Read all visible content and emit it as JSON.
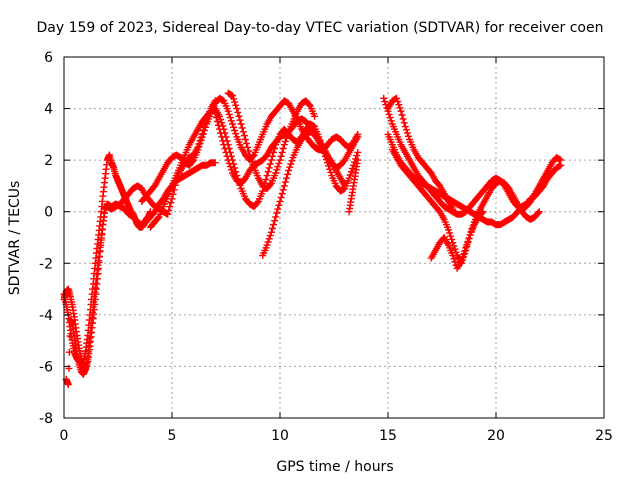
{
  "chart_data": {
    "type": "scatter",
    "title": "Day 159 of 2023, Sidereal Day-to-day VTEC variation (SDTVAR) for receiver coen",
    "xlabel": "GPS time / hours",
    "ylabel": "SDTVAR / TECUs",
    "xlim": [
      0,
      25
    ],
    "ylim": [
      -8,
      6
    ],
    "xticks": [
      0,
      5,
      10,
      15,
      20,
      25
    ],
    "yticks": [
      -8,
      -6,
      -4,
      -2,
      0,
      2,
      4,
      6
    ],
    "xtick_labels": [
      "0",
      "5",
      "10",
      "15",
      "20",
      "25"
    ],
    "ytick_labels": [
      "-8",
      "-6",
      "-4",
      "-2",
      "0",
      "2",
      "4",
      "6"
    ],
    "grid": true,
    "marker": "+",
    "series_color": "#ff0000",
    "series": [
      {
        "name": "s1",
        "x": [
          0.0,
          0.1,
          0.2,
          0.3,
          0.4,
          0.5,
          0.6,
          0.7,
          0.8,
          0.9,
          1.0,
          1.1,
          1.2,
          1.3,
          1.4,
          1.5,
          1.6,
          1.7,
          1.8,
          1.9,
          2.0,
          2.1,
          2.2,
          2.3,
          2.4,
          2.5,
          2.6,
          2.7,
          2.8,
          2.9,
          3.0,
          3.1,
          3.2,
          3.3,
          3.4,
          3.5,
          3.6,
          3.7,
          3.8,
          3.9,
          4.0
        ],
        "y": [
          -3.2,
          -3.6,
          -4.0,
          -4.6,
          -5.1,
          -5.5,
          -5.7,
          -5.8,
          -5.9,
          -5.8,
          -5.4,
          -4.8,
          -4.0,
          -3.2,
          -2.4,
          -1.6,
          -0.9,
          -0.2,
          0.6,
          1.3,
          2.0,
          2.2,
          1.9,
          1.7,
          1.4,
          1.2,
          1.0,
          0.8,
          0.6,
          0.4,
          0.2,
          0.0,
          -0.1,
          -0.3,
          -0.5,
          -0.6,
          -0.6,
          -0.5,
          -0.3,
          -0.2,
          0.0
        ]
      },
      {
        "name": "s2",
        "x": [
          0.0,
          0.1,
          0.2,
          0.3,
          0.4,
          0.5,
          0.6,
          0.7,
          0.8,
          0.9,
          1.0,
          1.1,
          1.2,
          1.3,
          1.4,
          1.5,
          1.6,
          1.7,
          1.8,
          1.9,
          2.0,
          2.2,
          2.4,
          2.6,
          2.8,
          3.0,
          3.2,
          3.4,
          3.6,
          3.8,
          4.0,
          4.2,
          4.4,
          4.6,
          4.8,
          5.0,
          5.2,
          5.4,
          5.6,
          5.8,
          6.0,
          6.2,
          6.4,
          6.6,
          6.8,
          7.0
        ],
        "y": [
          -3.4,
          -3.1,
          -3.0,
          -3.3,
          -3.7,
          -4.2,
          -4.8,
          -5.3,
          -5.7,
          -6.0,
          -6.1,
          -5.8,
          -5.2,
          -4.5,
          -3.8,
          -3.0,
          -2.2,
          -1.3,
          -0.5,
          0.1,
          0.2,
          0.1,
          0.2,
          0.3,
          0.5,
          0.7,
          0.9,
          1.0,
          0.9,
          0.6,
          0.4,
          0.2,
          0.1,
          0.0,
          -0.1,
          0.5,
          1.2,
          1.6,
          1.9,
          2.1,
          2.2,
          2.5,
          3.0,
          3.6,
          4.0,
          4.3
        ]
      },
      {
        "name": "s3",
        "x": [
          0.1,
          0.2,
          0.3,
          0.4,
          0.5,
          0.6,
          0.7,
          0.8,
          0.9,
          1.0,
          1.1,
          1.2,
          1.3,
          1.4,
          1.5,
          1.6,
          1.7,
          1.8,
          1.9,
          2.0,
          2.2,
          2.4,
          2.6,
          2.8,
          3.0,
          3.2,
          3.4,
          3.6,
          3.8,
          4.0,
          4.2,
          4.4,
          4.6,
          4.8,
          5.0,
          5.2,
          5.4,
          5.6,
          5.8,
          6.0,
          6.2,
          6.4,
          6.6,
          6.8,
          7.0
        ],
        "y": [
          -6.5,
          -6.7,
          -4.2,
          -4.4,
          -5.0,
          -5.5,
          -5.9,
          -6.2,
          -6.3,
          -6.1,
          -5.6,
          -4.9,
          -4.1,
          -3.3,
          -2.6,
          -1.9,
          -1.2,
          -0.5,
          0.1,
          0.3,
          0.2,
          0.3,
          0.2,
          0.1,
          -0.1,
          -0.2,
          -0.4,
          -0.5,
          -0.4,
          -0.2,
          0.0,
          0.3,
          0.5,
          0.8,
          1.0,
          1.2,
          1.3,
          1.4,
          1.5,
          1.6,
          1.7,
          1.8,
          1.8,
          1.9,
          1.9
        ]
      },
      {
        "name": "s4",
        "x": [
          3.6,
          3.8,
          4.0,
          4.2,
          4.4,
          4.6,
          4.8,
          5.0,
          5.2,
          5.4,
          5.6,
          5.8,
          6.0,
          6.2,
          6.4,
          6.6,
          6.8,
          7.0,
          7.2,
          7.4,
          7.6,
          7.8,
          8.0,
          8.2,
          8.4,
          8.6,
          8.8,
          9.0,
          9.2,
          9.4,
          9.6,
          9.8,
          10.0,
          10.2,
          10.4,
          10.6,
          10.8,
          11.0,
          11.2,
          11.4,
          11.6,
          11.8,
          12.0,
          12.2,
          12.4,
          12.6,
          12.8,
          13.0,
          13.2,
          13.4,
          13.6
        ],
        "y": [
          0.4,
          0.6,
          0.8,
          1.0,
          1.3,
          1.6,
          1.9,
          2.1,
          2.2,
          2.1,
          1.9,
          1.8,
          2.0,
          2.4,
          2.9,
          3.4,
          3.8,
          4.2,
          4.4,
          4.3,
          3.9,
          3.4,
          2.9,
          2.5,
          2.2,
          2.0,
          2.2,
          2.6,
          3.0,
          3.4,
          3.7,
          3.9,
          4.1,
          4.3,
          4.2,
          3.9,
          3.6,
          3.2,
          2.9,
          2.7,
          2.5,
          2.4,
          2.4,
          2.6,
          2.8,
          2.9,
          2.8,
          2.6,
          2.5,
          2.7,
          3.0
        ]
      },
      {
        "name": "s5",
        "x": [
          4.0,
          4.2,
          4.4,
          4.6,
          4.8,
          5.0,
          5.2,
          5.4,
          5.6,
          5.8,
          6.0,
          6.2,
          6.4,
          6.6,
          6.8,
          7.0,
          7.2,
          7.4,
          7.6,
          7.8,
          8.0,
          8.2,
          8.4,
          8.6,
          8.8,
          9.0,
          9.2,
          9.4,
          9.6,
          9.8,
          10.0,
          10.2,
          10.4,
          10.6,
          10.8,
          11.0,
          11.2,
          11.4,
          11.6,
          11.8,
          12.0,
          12.2,
          12.4,
          12.6,
          12.8,
          13.0,
          13.2,
          13.4,
          13.6
        ],
        "y": [
          -0.6,
          -0.4,
          -0.2,
          0.2,
          0.6,
          1.0,
          1.4,
          1.8,
          2.2,
          2.6,
          2.9,
          3.2,
          3.5,
          3.7,
          3.9,
          4.0,
          3.7,
          3.2,
          2.6,
          2.0,
          1.4,
          0.9,
          0.5,
          0.3,
          0.2,
          0.4,
          0.8,
          1.4,
          2.0,
          2.6,
          3.0,
          3.2,
          3.0,
          2.8,
          2.7,
          2.9,
          3.2,
          3.4,
          3.3,
          2.9,
          2.4,
          1.9,
          1.4,
          1.0,
          0.8,
          0.9,
          1.3,
          1.8,
          2.3
        ]
      },
      {
        "name": "s6",
        "x": [
          7.0,
          7.2,
          7.4,
          7.6,
          7.8,
          8.0,
          8.2,
          8.4,
          8.6,
          8.8,
          9.0,
          9.2,
          9.4,
          9.6,
          9.8,
          10.0,
          10.2,
          10.4,
          10.6,
          10.8,
          11.0,
          11.2,
          11.4,
          11.6,
          11.8,
          12.0,
          12.2,
          12.4,
          12.6,
          12.8,
          13.0,
          13.2,
          13.4,
          13.6
        ],
        "y": [
          3.8,
          3.2,
          2.6,
          2.0,
          1.5,
          1.2,
          1.1,
          1.3,
          1.6,
          1.8,
          1.9,
          2.0,
          2.2,
          2.5,
          2.7,
          2.9,
          3.0,
          3.1,
          3.3,
          3.5,
          3.6,
          3.5,
          3.3,
          3.0,
          2.7,
          2.4,
          2.1,
          1.9,
          1.7,
          1.8,
          2.0,
          2.3,
          2.6,
          2.9
        ]
      },
      {
        "name": "s7",
        "x": [
          7.6,
          7.8,
          8.0,
          8.2,
          8.4,
          8.6,
          8.8,
          9.0,
          9.2,
          9.4,
          9.6,
          9.8,
          10.0,
          10.2,
          10.4,
          10.6,
          10.8,
          11.0,
          11.2,
          11.4,
          11.6
        ],
        "y": [
          4.6,
          4.5,
          4.0,
          3.4,
          2.8,
          2.2,
          1.7,
          1.3,
          1.0,
          0.9,
          1.1,
          1.5,
          2.0,
          2.6,
          3.1,
          3.5,
          3.9,
          4.2,
          4.3,
          4.1,
          3.7
        ]
      },
      {
        "name": "s8",
        "x": [
          9.2,
          9.4,
          9.6,
          9.8,
          10.0,
          10.2,
          10.4,
          10.6,
          10.8,
          11.0,
          11.2,
          11.4,
          11.6,
          11.8,
          12.0,
          12.2,
          12.4,
          12.6,
          12.8,
          13.0
        ],
        "y": [
          -1.7,
          -1.3,
          -0.8,
          -0.2,
          0.4,
          1.0,
          1.6,
          2.1,
          2.5,
          2.8,
          3.0,
          3.1,
          3.0,
          2.8,
          2.5,
          2.2,
          1.9,
          1.6,
          1.3,
          1.0
        ]
      },
      {
        "name": "s9",
        "x": [
          13.2,
          13.3,
          13.4,
          13.5,
          13.6
        ],
        "y": [
          0.0,
          0.5,
          1.0,
          1.5,
          2.0
        ]
      },
      {
        "name": "s10",
        "x": [
          14.8,
          15.0,
          15.2,
          15.4,
          15.6,
          15.8,
          16.0,
          16.2,
          16.4,
          16.6,
          16.8,
          17.0,
          17.2,
          17.4,
          17.6,
          17.8,
          18.0,
          18.2,
          18.4,
          18.6,
          18.8,
          19.0,
          19.2,
          19.4,
          19.6,
          19.8,
          20.0,
          20.2,
          20.4,
          20.6,
          20.8,
          21.0,
          21.2,
          21.4,
          21.6,
          21.8,
          22.0,
          22.2,
          22.4,
          22.6,
          22.8,
          23.0
        ],
        "y": [
          4.4,
          3.9,
          3.4,
          3.0,
          2.6,
          2.3,
          2.0,
          1.7,
          1.4,
          1.2,
          1.0,
          0.8,
          0.6,
          0.4,
          0.2,
          0.1,
          0.0,
          -0.1,
          -0.1,
          0.0,
          0.2,
          0.4,
          0.6,
          0.8,
          1.0,
          1.2,
          1.3,
          1.2,
          1.0,
          0.7,
          0.4,
          0.2,
          0.1,
          0.2,
          0.4,
          0.7,
          1.0,
          1.3,
          1.6,
          1.9,
          2.1,
          2.0
        ]
      },
      {
        "name": "s11",
        "x": [
          15.0,
          15.2,
          15.4,
          15.6,
          15.8,
          16.0,
          16.2,
          16.4,
          16.6,
          16.8,
          17.0,
          17.2,
          17.4,
          17.6,
          17.8,
          18.0,
          18.2,
          18.4,
          18.6,
          18.8,
          19.0,
          19.2,
          19.4,
          19.6,
          19.8,
          20.0,
          20.2,
          20.4,
          20.6,
          20.8,
          21.0,
          21.2,
          21.4,
          21.6,
          21.8,
          22.0,
          22.2,
          22.4,
          22.6,
          22.8,
          23.0
        ],
        "y": [
          3.0,
          2.6,
          2.2,
          1.9,
          1.7,
          1.5,
          1.3,
          1.2,
          1.1,
          1.0,
          0.9,
          0.8,
          0.7,
          0.6,
          0.5,
          0.4,
          0.3,
          0.2,
          0.1,
          0.0,
          -0.1,
          -0.2,
          -0.3,
          -0.4,
          -0.4,
          -0.5,
          -0.5,
          -0.4,
          -0.3,
          -0.2,
          0.0,
          0.2,
          0.3,
          0.5,
          0.6,
          0.8,
          1.0,
          1.3,
          1.5,
          1.7,
          1.8
        ]
      },
      {
        "name": "s12",
        "x": [
          15.2,
          15.4,
          15.6,
          15.8,
          16.0,
          16.2,
          16.4,
          16.6,
          16.8,
          17.0,
          17.2,
          17.4,
          17.6,
          17.8,
          18.0,
          18.2,
          18.4,
          18.6,
          18.8,
          19.0,
          19.2,
          19.4,
          19.6,
          19.8,
          20.0,
          20.2,
          20.4,
          20.6,
          20.8,
          21.0,
          21.2,
          21.4,
          21.6,
          21.8,
          22.0
        ],
        "y": [
          2.4,
          2.1,
          1.8,
          1.6,
          1.4,
          1.2,
          1.0,
          0.8,
          0.6,
          0.4,
          0.2,
          0.0,
          -0.3,
          -0.7,
          -1.2,
          -1.7,
          -2.0,
          -1.5,
          -0.9,
          -0.4,
          0.0,
          0.3,
          0.6,
          0.9,
          1.1,
          1.2,
          1.1,
          0.9,
          0.6,
          0.3,
          0.0,
          -0.2,
          -0.3,
          -0.2,
          0.0
        ]
      },
      {
        "name": "s13",
        "x": [
          17.0,
          17.2,
          17.4,
          17.6,
          17.8,
          18.0,
          18.2,
          18.4,
          18.6,
          18.8,
          19.0,
          19.2,
          19.4
        ],
        "y": [
          -1.8,
          -1.5,
          -1.2,
          -1.0,
          -1.3,
          -1.7,
          -2.2,
          -1.9,
          -1.4,
          -0.9,
          -0.5,
          -0.2,
          0.0
        ]
      },
      {
        "name": "s14",
        "x": [
          15.0,
          15.2,
          15.4,
          15.6,
          15.8,
          16.0,
          16.2,
          16.4,
          16.6,
          16.8,
          17.0,
          17.2,
          17.4,
          17.6,
          17.8,
          18.0
        ],
        "y": [
          4.0,
          4.3,
          4.4,
          3.9,
          3.3,
          2.8,
          2.4,
          2.1,
          1.9,
          1.7,
          1.5,
          1.2,
          1.0,
          0.7,
          0.4,
          0.1
        ]
      }
    ]
  }
}
